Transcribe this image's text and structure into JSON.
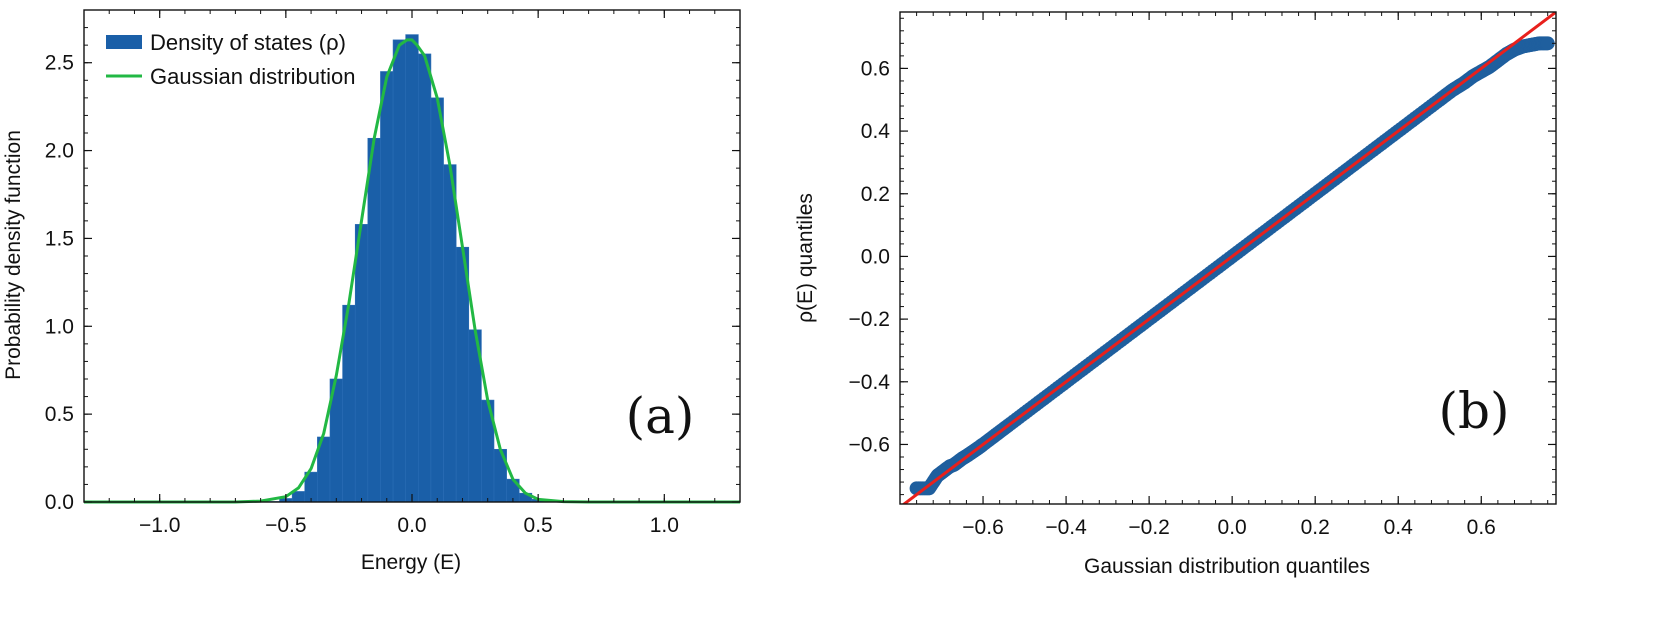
{
  "chart_data": [
    {
      "type": "bar",
      "panel_label": "(a)",
      "xlabel": "Energy (E)",
      "ylabel": "Probability density function",
      "xlim": [
        -1.3,
        1.3
      ],
      "ylim": [
        0.0,
        2.8
      ],
      "xticks": [
        -1.0,
        -0.5,
        0.0,
        0.5,
        1.0
      ],
      "xtick_labels": [
        "−1.0",
        "−0.5",
        "0.0",
        "0.5",
        "1.0"
      ],
      "yticks": [
        0.0,
        0.5,
        1.0,
        1.5,
        2.0,
        2.5
      ],
      "ytick_labels": [
        "0.0",
        "0.5",
        "1.0",
        "1.5",
        "2.0",
        "2.5"
      ],
      "grid": false,
      "legend_position": "top-left",
      "series": [
        {
          "name": "Density of states (ρ)",
          "kind": "histogram",
          "color": "#1a5fa8",
          "bin_centers": [
            -0.55,
            -0.5,
            -0.45,
            -0.4,
            -0.35,
            -0.3,
            -0.25,
            -0.2,
            -0.15,
            -0.1,
            -0.05,
            0.0,
            0.05,
            0.1,
            0.15,
            0.2,
            0.25,
            0.3,
            0.35,
            0.4,
            0.45,
            0.5,
            0.55
          ],
          "values": [
            0.003,
            0.02,
            0.06,
            0.17,
            0.37,
            0.7,
            1.12,
            1.58,
            2.07,
            2.45,
            2.63,
            2.66,
            2.55,
            2.3,
            1.92,
            1.45,
            0.98,
            0.58,
            0.3,
            0.13,
            0.05,
            0.015,
            0.004
          ]
        },
        {
          "name": "Gaussian distribution",
          "kind": "line",
          "color": "#22b844",
          "x": [
            -1.3,
            -0.7,
            -0.6,
            -0.5,
            -0.45,
            -0.4,
            -0.35,
            -0.3,
            -0.25,
            -0.2,
            -0.15,
            -0.1,
            -0.05,
            -0.02,
            0.0,
            0.02,
            0.05,
            0.1,
            0.15,
            0.2,
            0.25,
            0.3,
            0.35,
            0.4,
            0.45,
            0.5,
            0.6,
            0.7,
            1.3
          ],
          "y": [
            0.0,
            0.0,
            0.005,
            0.03,
            0.08,
            0.19,
            0.39,
            0.72,
            1.13,
            1.6,
            2.07,
            2.42,
            2.6,
            2.63,
            2.63,
            2.6,
            2.54,
            2.3,
            1.92,
            1.45,
            0.98,
            0.58,
            0.3,
            0.13,
            0.05,
            0.015,
            0.002,
            0.0,
            0.0
          ]
        }
      ]
    },
    {
      "type": "scatter",
      "panel_label": "(b)",
      "xlabel": "Gaussian distribution quantiles",
      "ylabel": "ρ(E) quantiles",
      "xlim": [
        -0.8,
        0.78
      ],
      "ylim": [
        -0.79,
        0.78
      ],
      "xticks": [
        -0.6,
        -0.4,
        -0.2,
        0.0,
        0.2,
        0.4,
        0.6
      ],
      "xtick_labels": [
        "−0.6",
        "−0.4",
        "−0.2",
        "0.0",
        "0.2",
        "0.4",
        "0.6"
      ],
      "yticks": [
        -0.6,
        -0.4,
        -0.2,
        0.0,
        0.2,
        0.4,
        0.6
      ],
      "ytick_labels": [
        "−0.6",
        "−0.4",
        "−0.2",
        "0.0",
        "0.2",
        "0.4",
        "0.6"
      ],
      "grid": false,
      "series": [
        {
          "name": "",
          "kind": "points",
          "color": "#1f5f9e",
          "x": [
            -0.76,
            -0.73,
            -0.71,
            -0.7,
            -0.69,
            -0.68,
            -0.67,
            -0.66,
            -0.65,
            -0.64,
            -0.63,
            -0.62,
            -0.61,
            -0.6,
            -0.57,
            -0.54,
            -0.5,
            -0.46,
            -0.42,
            -0.38,
            -0.34,
            -0.3,
            -0.26,
            -0.22,
            -0.18,
            -0.14,
            -0.1,
            -0.06,
            -0.02,
            0.02,
            0.06,
            0.1,
            0.14,
            0.18,
            0.22,
            0.26,
            0.3,
            0.34,
            0.38,
            0.42,
            0.46,
            0.5,
            0.53,
            0.56,
            0.58,
            0.6,
            0.62,
            0.64,
            0.66,
            0.68,
            0.7,
            0.72,
            0.74,
            0.76
          ],
          "y": [
            -0.74,
            -0.74,
            -0.7,
            -0.69,
            -0.68,
            -0.67,
            -0.665,
            -0.655,
            -0.645,
            -0.637,
            -0.628,
            -0.619,
            -0.61,
            -0.6,
            -0.57,
            -0.54,
            -0.5,
            -0.46,
            -0.42,
            -0.38,
            -0.34,
            -0.3,
            -0.26,
            -0.22,
            -0.18,
            -0.14,
            -0.1,
            -0.06,
            -0.02,
            0.02,
            0.06,
            0.1,
            0.14,
            0.18,
            0.22,
            0.26,
            0.3,
            0.34,
            0.38,
            0.42,
            0.46,
            0.5,
            0.53,
            0.555,
            0.575,
            0.59,
            0.605,
            0.625,
            0.645,
            0.66,
            0.67,
            0.675,
            0.68,
            0.68
          ]
        },
        {
          "name": "",
          "kind": "reference-line",
          "color": "#e8201c",
          "x": [
            -0.8,
            0.78
          ],
          "y": [
            -0.8,
            0.78
          ]
        }
      ]
    }
  ]
}
